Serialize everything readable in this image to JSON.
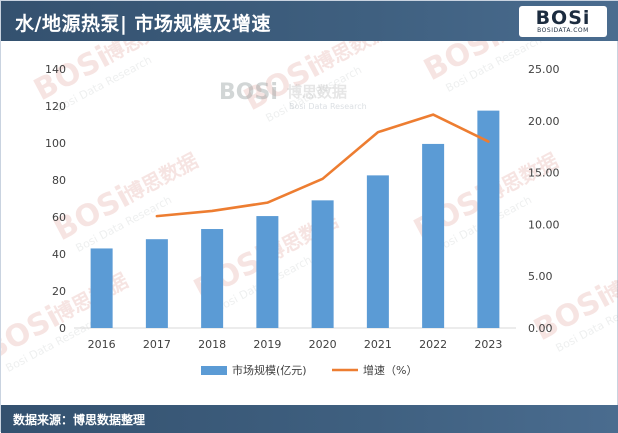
{
  "header": {
    "title": "水/地源热泵| 市场规模及增速",
    "logo_text": "BOSi",
    "logo_subtext": "BOSIDATA.COM"
  },
  "footer": {
    "source": "数据来源：博思数据整理"
  },
  "watermark": {
    "brand": "BOSi",
    "cn": "博思数据",
    "en": "Bosi Data Research"
  },
  "colors": {
    "bar": "#5b9bd5",
    "line": "#ed7d31",
    "header": "#3f6080"
  },
  "chart_data": {
    "type": "bar+line",
    "categories": [
      "2016",
      "2017",
      "2018",
      "2019",
      "2020",
      "2021",
      "2022",
      "2023"
    ],
    "series": [
      {
        "name": "市场规模(亿元)",
        "type": "bar",
        "axis": "left",
        "values": [
          43,
          48,
          53.5,
          60.5,
          69,
          82.5,
          99.5,
          117.5
        ]
      },
      {
        "name": "增速（%）",
        "type": "line",
        "axis": "right",
        "values": [
          null,
          10.8,
          11.3,
          12.1,
          14.4,
          18.9,
          20.6,
          18.0
        ]
      }
    ],
    "y_left": {
      "min": 0,
      "max": 140,
      "step": 20,
      "ticks": [
        "0",
        "20",
        "40",
        "60",
        "80",
        "100",
        "120",
        "140"
      ]
    },
    "y_right": {
      "min": 0,
      "max": 25,
      "step": 5,
      "ticks": [
        "0.00",
        "5.00",
        "10.00",
        "15.00",
        "20.00",
        "25.00"
      ]
    },
    "legend_position": "bottom",
    "grid": false
  }
}
